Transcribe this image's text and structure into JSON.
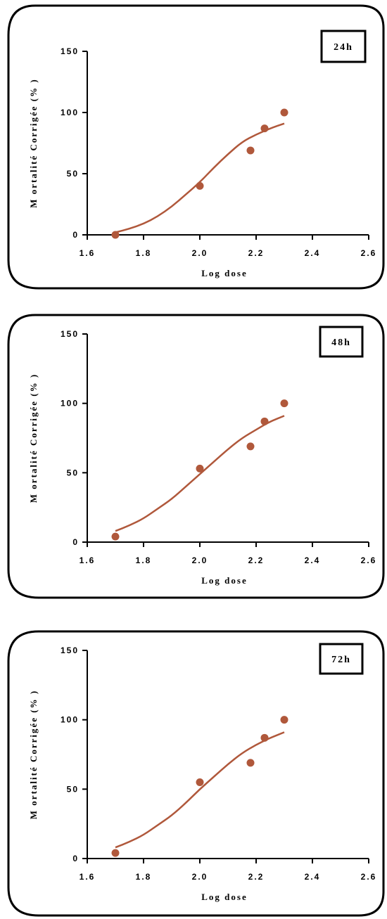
{
  "colors": {
    "series": "#B0583B",
    "frame": "#000000"
  },
  "chart_data": [
    {
      "type": "scatter",
      "tag": "24h",
      "xlabel": "Log dose",
      "ylabel": "M ortalité Corrigée (% )",
      "xlim": [
        1.6,
        2.6
      ],
      "ylim": [
        0,
        150
      ],
      "xticks": [
        "1.6",
        "1.8",
        "2.0",
        "2.2",
        "2.4",
        "2.6"
      ],
      "yticks": [
        "0",
        "50",
        "100",
        "150"
      ],
      "points": [
        [
          1.7,
          0
        ],
        [
          2.0,
          40
        ],
        [
          2.18,
          69
        ],
        [
          2.23,
          87
        ],
        [
          2.3,
          100
        ]
      ],
      "fit": {
        "x": [
          1.7,
          1.75,
          1.8,
          1.85,
          1.9,
          1.95,
          2.0,
          2.05,
          2.1,
          2.15,
          2.2,
          2.25,
          2.3
        ],
        "y": [
          2,
          5,
          9,
          15,
          23,
          33,
          43,
          55,
          66,
          76,
          82,
          87,
          91
        ]
      }
    },
    {
      "type": "scatter",
      "tag": "48h",
      "xlabel": "Log dose",
      "ylabel": "M ortalité Corrigée (% )",
      "xlim": [
        1.6,
        2.6
      ],
      "ylim": [
        0,
        150
      ],
      "xticks": [
        "1.6",
        "1.8",
        "2.0",
        "2.2",
        "2.4",
        "2.6"
      ],
      "yticks": [
        "0",
        "50",
        "100",
        "150"
      ],
      "points": [
        [
          1.7,
          4
        ],
        [
          2.0,
          53
        ],
        [
          2.18,
          69
        ],
        [
          2.23,
          87
        ],
        [
          2.3,
          100
        ]
      ],
      "fit": {
        "x": [
          1.7,
          1.75,
          1.8,
          1.85,
          1.9,
          1.95,
          2.0,
          2.05,
          2.1,
          2.15,
          2.2,
          2.25,
          2.3
        ],
        "y": [
          8,
          12,
          17,
          24,
          31,
          40,
          49,
          58,
          67,
          75,
          81,
          87,
          91
        ]
      }
    },
    {
      "type": "scatter",
      "tag": "72h",
      "xlabel": "Log dose",
      "ylabel": "M ortalité Corrigée (% )",
      "xlim": [
        1.6,
        2.6
      ],
      "ylim": [
        0,
        150
      ],
      "xticks": [
        "1.6",
        "1.8",
        "2.0",
        "2.2",
        "2.4",
        "2.6"
      ],
      "yticks": [
        "0",
        "50",
        "100",
        "150"
      ],
      "points": [
        [
          1.7,
          4
        ],
        [
          2.0,
          55
        ],
        [
          2.18,
          69
        ],
        [
          2.23,
          87
        ],
        [
          2.3,
          100
        ]
      ],
      "fit": {
        "x": [
          1.7,
          1.75,
          1.8,
          1.85,
          1.9,
          1.95,
          2.0,
          2.05,
          2.1,
          2.15,
          2.2,
          2.25,
          2.3
        ],
        "y": [
          8,
          12,
          17,
          24,
          31,
          40,
          50,
          59,
          68,
          76,
          82,
          87,
          91
        ]
      }
    }
  ]
}
